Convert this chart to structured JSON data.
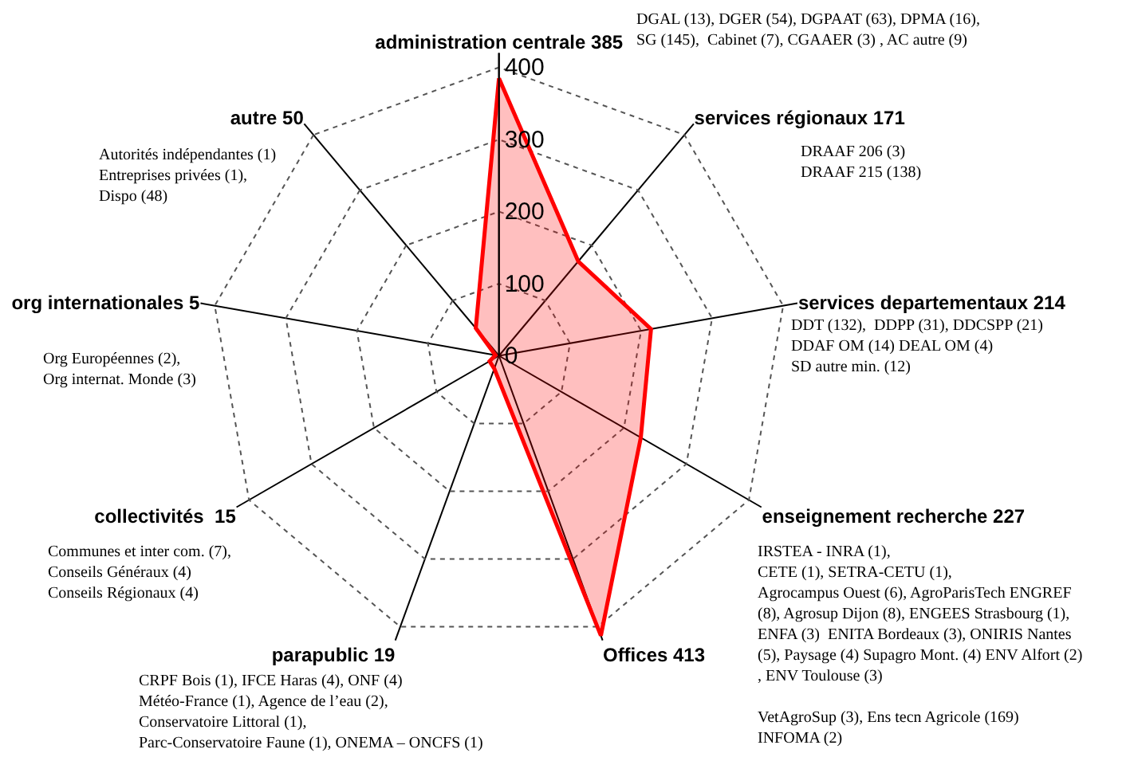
{
  "chart_data": {
    "type": "radar",
    "categories": [
      "administration centrale 385",
      "services régionaux 171",
      "services departementaux 214",
      "enseignement recherche 227",
      "Offices 413",
      "parapublic 19",
      "collectivités  15",
      "org internationales 5",
      "autre 50"
    ],
    "series": [
      {
        "color": "#ff0000",
        "values": [
          385,
          171,
          214,
          227,
          413,
          19,
          15,
          5,
          50
        ]
      }
    ],
    "ylim": [
      0,
      420
    ],
    "yticks": [
      0,
      100,
      200,
      300,
      400
    ],
    "grid": true,
    "marker": "none",
    "line_style": "solid",
    "legend": false,
    "annotations": [
      "DGAL (13), DGER (54), DGPAAT (63), DPMA (16),\nSG (145),  Cabinet (7), CGAAER (3) , AC autre (9)",
      "DRAAF 206 (3)\nDRAAF 215 (138)",
      "DDT (132),  DDPP (31), DDCSPP (21)\nDDAF OM (14) DEAL OM (4)\nSD autre min. (12)",
      "IRSTEA - INRA (1),\nCETE (1), SETRA-CETU (1),\nAgrocampus Ouest (6), AgroParisTech ENGREF\n(8), Agrosup Dijon (8), ENGEES Strasbourg (1),\nENFA (3)  ENITA Bordeaux (3), ONIRIS Nantes\n(5), Paysage (4) Supagro Mont. (4) ENV Alfort (2)\n, ENV Toulouse (3)",
      "VetAgroSup (3), Ens tecn Agricole (169)\nINFOMA (2)",
      "CRPF Bois (1), IFCE Haras (4), ONF (4)\nMétéo-France (1), Agence de l’eau (2),\nConservatoire Littoral (1),\nParc-Conservatoire Faune (1), ONEMA – ONCFS (1)",
      "Communes et inter com. (7),\nConseils Généraux (4)\nConseils Régionaux (4)",
      "Org Européennes (2),\nOrg internat. Monde (3)",
      "Autorités indépendantes (1)\nEntreprises privées (1),\nDispo (48)"
    ]
  }
}
